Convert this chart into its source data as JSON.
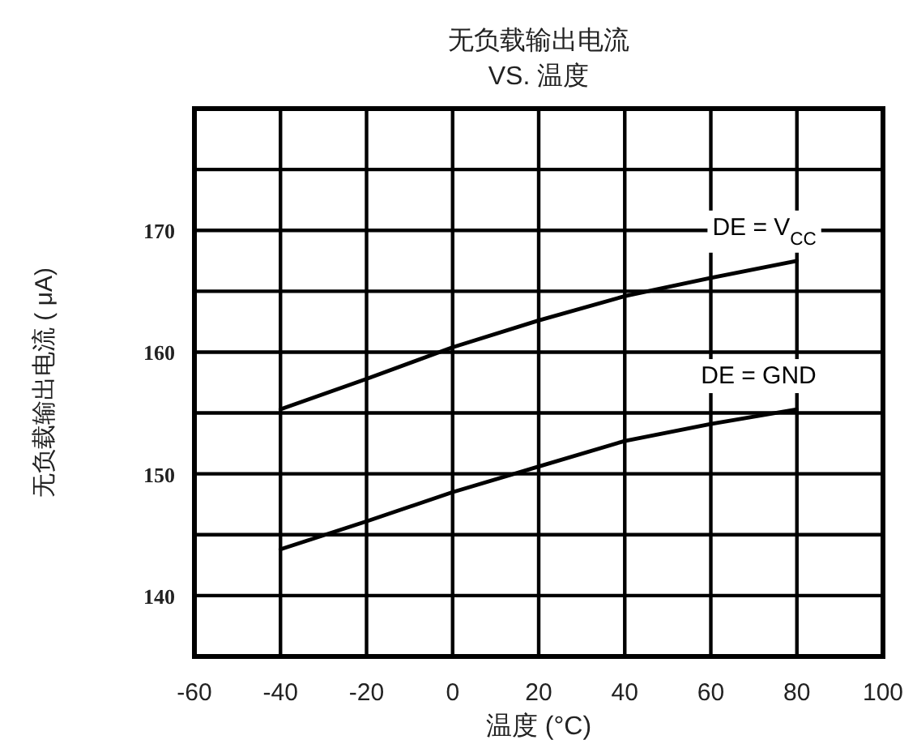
{
  "chart_data": {
    "type": "line",
    "title": "无负载输出电流",
    "subtitle": "VS. 温度",
    "xlabel": "温度 (°C)",
    "ylabel": "无负载输出电流 ( μA)",
    "x": [
      -40,
      -20,
      0,
      20,
      40,
      60,
      80
    ],
    "series": [
      {
        "name": "DE = V$_{CC}$",
        "color": "#000000",
        "values": [
          155.3,
          157.8,
          160.4,
          162.6,
          164.6,
          166.1,
          167.5
        ]
      },
      {
        "name": "DE = GND",
        "color": "#000000",
        "values": [
          143.8,
          146.1,
          148.5,
          150.6,
          152.7,
          154.1,
          155.3
        ]
      }
    ],
    "xlim": [
      -60,
      100
    ],
    "xticks": [
      -60,
      -40,
      -20,
      0,
      20,
      40,
      60,
      80,
      100
    ],
    "ylim": [
      135,
      180
    ],
    "yticks": [
      140,
      {
        "value": 145,
        "label": null
      },
      150,
      {
        "value": 155,
        "label": null
      },
      160,
      {
        "value": 165,
        "label": null
      },
      170,
      {
        "value": 175,
        "label": null
      }
    ],
    "grid": true,
    "legend": false,
    "marker": "none",
    "line_style": "solid"
  }
}
